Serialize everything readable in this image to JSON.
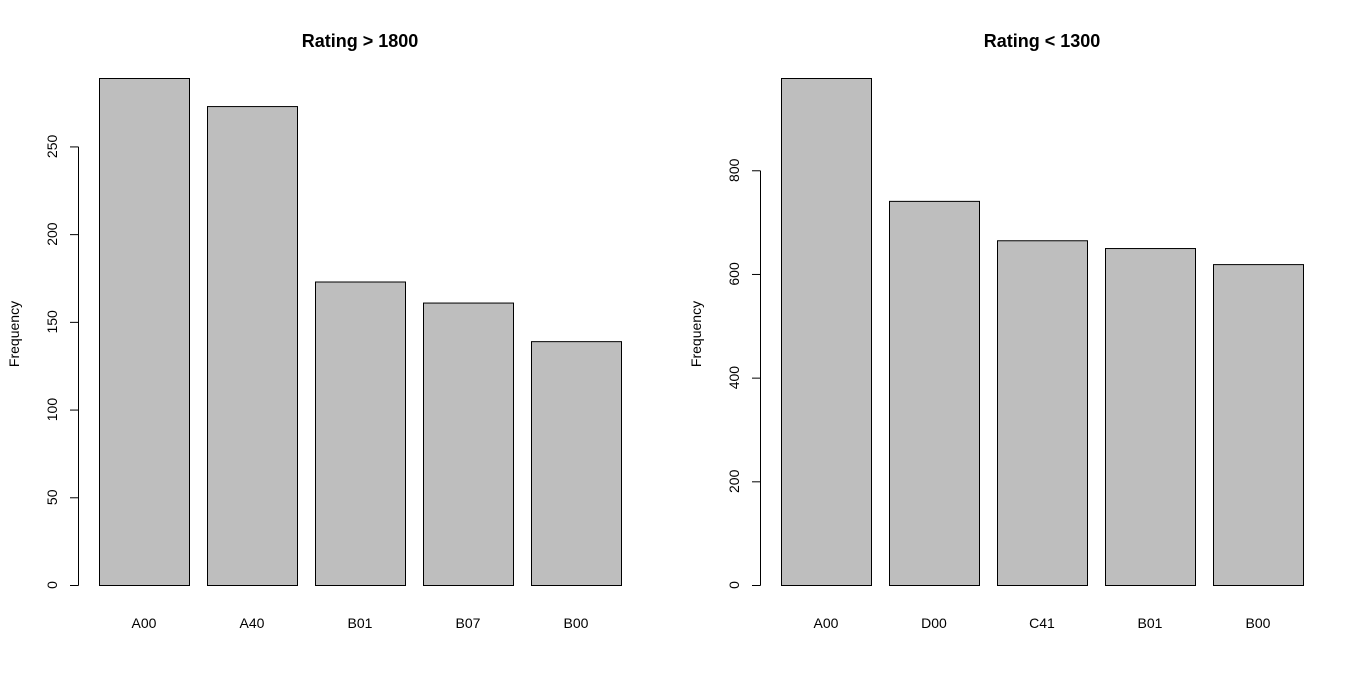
{
  "chart_data": [
    {
      "type": "bar",
      "title": "Rating > 1800",
      "xlabel": "",
      "ylabel": "Frequency",
      "categories": [
        "A00",
        "A40",
        "B01",
        "B07",
        "B00"
      ],
      "values": [
        289,
        273,
        173,
        161,
        139
      ],
      "yticks": [
        0,
        50,
        100,
        150,
        200,
        250
      ],
      "ylim": [
        0,
        289
      ],
      "grid": false,
      "bar_color": "#bebebe",
      "edge_color": "#000000"
    },
    {
      "type": "bar",
      "title": "Rating < 1300",
      "xlabel": "",
      "ylabel": "Frequency",
      "categories": [
        "A00",
        "D00",
        "C41",
        "B01",
        "B00"
      ],
      "values": [
        978,
        741,
        665,
        650,
        619
      ],
      "yticks": [
        0,
        200,
        400,
        600,
        800
      ],
      "ylim": [
        0,
        978
      ],
      "grid": false,
      "bar_color": "#bebebe",
      "edge_color": "#000000"
    }
  ]
}
